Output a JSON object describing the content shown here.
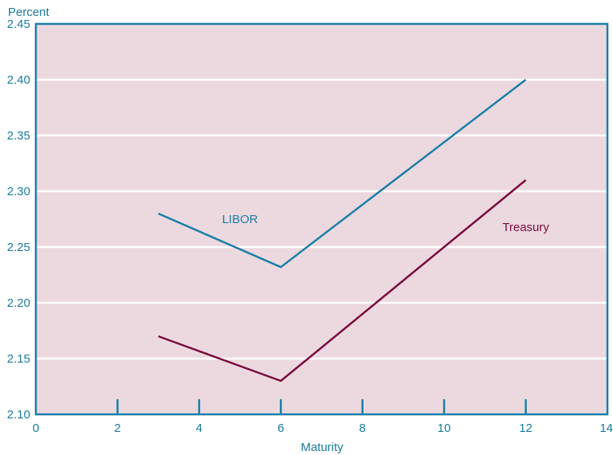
{
  "chart_data": {
    "type": "line",
    "title": "",
    "ylabel": "Percent",
    "xlabel": "Maturity",
    "xlim": [
      0,
      14
    ],
    "ylim": [
      2.1,
      2.45
    ],
    "xticks": [
      0,
      2,
      4,
      6,
      8,
      10,
      12,
      14
    ],
    "xtick_labels": [
      "0",
      "2",
      "4",
      "6",
      "8",
      "10",
      "12",
      "14"
    ],
    "yticks": [
      2.1,
      2.15,
      2.2,
      2.25,
      2.3,
      2.35,
      2.4,
      2.45
    ],
    "ytick_labels": [
      "2.10",
      "2.15",
      "2.20",
      "2.25",
      "2.30",
      "2.35",
      "2.40",
      "2.45"
    ],
    "grid": "horizontal",
    "series": [
      {
        "name": "LIBOR",
        "color": "#1a7fa8",
        "x": [
          3,
          6,
          12
        ],
        "values": [
          2.28,
          2.232,
          2.4
        ],
        "label_at": [
          5,
          2.275
        ]
      },
      {
        "name": "Treasury",
        "color": "#7a0a3e",
        "x": [
          3,
          6,
          12
        ],
        "values": [
          2.17,
          2.13,
          2.31
        ],
        "label_at": [
          12,
          2.268
        ]
      }
    ],
    "colors": {
      "plot_background": "#ecd9df",
      "frame": "#1a7fa8",
      "grid": "#ffffff",
      "text": "#1a7a9a"
    }
  }
}
